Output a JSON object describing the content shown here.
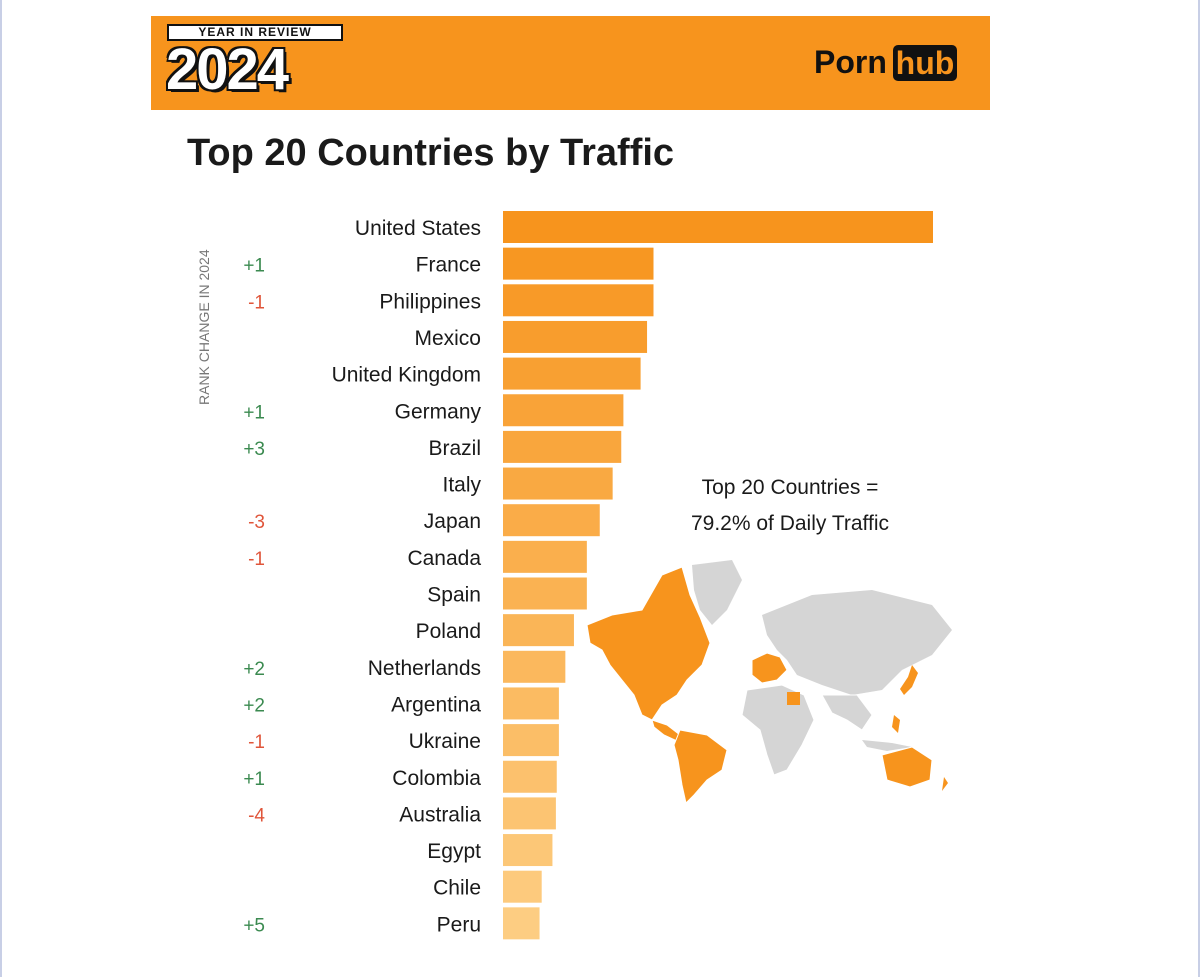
{
  "banner": {
    "label": "YEAR IN REVIEW",
    "year": "2024",
    "brand_part1": "Porn",
    "brand_part2": "hub"
  },
  "colors": {
    "banner_bg": "#f7941d",
    "positive_change": "#3b8a50",
    "negative_change": "#e0553a"
  },
  "chart_data": {
    "type": "bar",
    "orientation": "horizontal",
    "title": "Top 20 Countries by Traffic",
    "rank_change_label": "RANK CHANGE IN 2024",
    "annotation_line1": "Top 20 Countries =",
    "annotation_line2": "79.2% of Daily Traffic",
    "categories": [
      "United States",
      "France",
      "Philippines",
      "Mexico",
      "United Kingdom",
      "Germany",
      "Brazil",
      "Italy",
      "Japan",
      "Canada",
      "Spain",
      "Poland",
      "Netherlands",
      "Argentina",
      "Ukraine",
      "Colombia",
      "Australia",
      "Egypt",
      "Chile",
      "Peru"
    ],
    "rank_change": [
      "",
      "+1",
      "-1",
      "",
      "",
      "+1",
      "+3",
      "",
      "-3",
      "-1",
      "",
      "",
      "+2",
      "+2",
      "-1",
      "+1",
      "-4",
      "",
      "",
      "+5"
    ],
    "values": [
      100,
      35,
      35,
      33.5,
      32,
      28,
      27.5,
      25.5,
      22.5,
      19.5,
      19.5,
      16.5,
      14.5,
      13,
      13,
      12.5,
      12.3,
      11.5,
      9,
      8.5
    ],
    "values_note_unit": "relative traffic index (United States = 100)",
    "highlighted_map_regions": [
      "North America",
      "South America",
      "Western Europe",
      "Egypt",
      "Japan",
      "Philippines",
      "Australia"
    ]
  }
}
